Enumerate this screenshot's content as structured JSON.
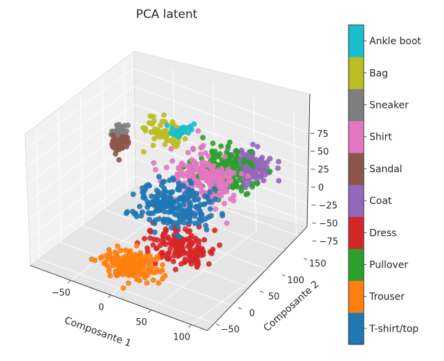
{
  "chart_data": {
    "type": "scatter",
    "title": "PCA latent",
    "projection": "3d",
    "xlabel": "Composante 1",
    "ylabel": "Composante 2",
    "zlabel": "",
    "x_ticks": [
      -50,
      0,
      50,
      100
    ],
    "y_ticks": [
      -50,
      0,
      50,
      100,
      150
    ],
    "z_ticks": [
      -75,
      -50,
      -25,
      0,
      25,
      50,
      75
    ],
    "xlim": [
      -100,
      120
    ],
    "ylim": [
      -70,
      170
    ],
    "zlim": [
      -90,
      95
    ],
    "grid": true,
    "colormap": "tab10",
    "colorbar": {
      "labels": [
        "T-shirt/top",
        "Trouser",
        "Pullover",
        "Dress",
        "Coat",
        "Sandal",
        "Shirt",
        "Sneaker",
        "Bag",
        "Ankle boot"
      ],
      "colors": [
        "#1f77b4",
        "#ff7f0e",
        "#2ca02c",
        "#d62728",
        "#9467bd",
        "#8c564b",
        "#e377c2",
        "#7f7f7f",
        "#bcbd22",
        "#17becf"
      ]
    },
    "series": [
      {
        "name": "T-shirt/top",
        "color": "#1f77b4",
        "center": [
          10,
          60,
          -20
        ],
        "spread": [
          45,
          45,
          18
        ]
      },
      {
        "name": "Trouser",
        "color": "#ff7f0e",
        "center": [
          -5,
          -15,
          -75
        ],
        "spread": [
          30,
          25,
          12
        ]
      },
      {
        "name": "Pullover",
        "color": "#2ca02c",
        "center": [
          55,
          90,
          35
        ],
        "spread": [
          30,
          35,
          22
        ]
      },
      {
        "name": "Dress",
        "color": "#d62728",
        "center": [
          40,
          20,
          -45
        ],
        "spread": [
          35,
          30,
          18
        ]
      },
      {
        "name": "Coat",
        "color": "#9467bd",
        "center": [
          70,
          120,
          30
        ],
        "spread": [
          25,
          25,
          18
        ]
      },
      {
        "name": "Sandal",
        "color": "#8c564b",
        "center": [
          -80,
          100,
          10
        ],
        "spread": [
          10,
          20,
          10
        ]
      },
      {
        "name": "Shirt",
        "color": "#e377c2",
        "center": [
          30,
          90,
          10
        ],
        "spread": [
          40,
          40,
          25
        ]
      },
      {
        "name": "Sneaker",
        "color": "#7f7f7f",
        "center": [
          -85,
          110,
          20
        ],
        "spread": [
          8,
          15,
          8
        ]
      },
      {
        "name": "Bag",
        "color": "#bcbd22",
        "center": [
          -40,
          130,
          30
        ],
        "spread": [
          25,
          15,
          15
        ]
      },
      {
        "name": "Ankle boot",
        "color": "#17becf",
        "center": [
          -30,
          150,
          25
        ],
        "spread": [
          12,
          12,
          8
        ]
      }
    ]
  }
}
